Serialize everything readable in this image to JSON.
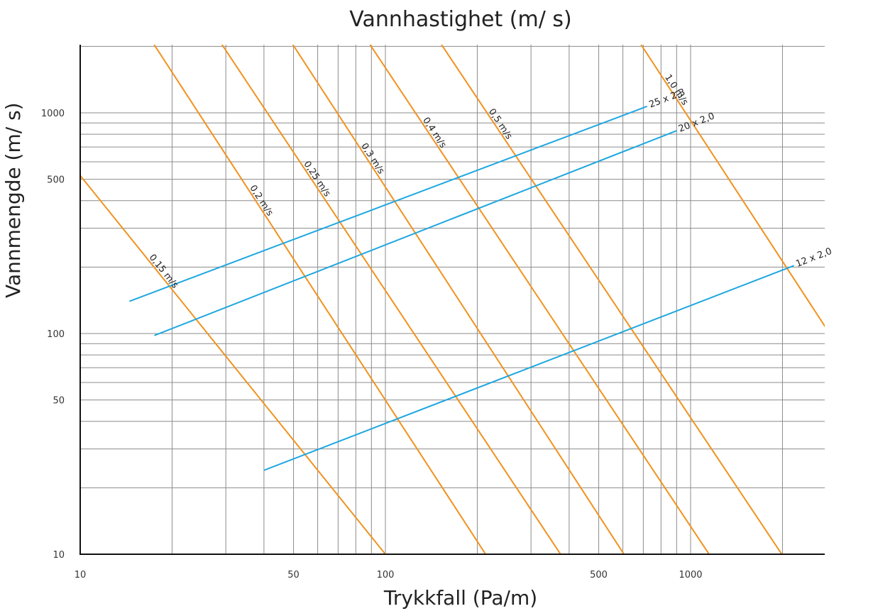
{
  "chart_data": {
    "type": "line",
    "title": "Vannhastighet (m/ s)",
    "xlabel": "Trykkfall (Pa/m)",
    "ylabel": "Vannmengde (m/ s)",
    "x_scale": "log",
    "y_scale": "log",
    "xlim": [
      10,
      3000
    ],
    "ylim": [
      10,
      2500
    ],
    "x_ticks": [
      {
        "value": 10,
        "label": "10"
      },
      {
        "value": 50,
        "label": "50"
      },
      {
        "value": 100,
        "label": "100"
      },
      {
        "value": 500,
        "label": "500"
      },
      {
        "value": 1000,
        "label": "1000"
      }
    ],
    "y_ticks": [
      {
        "value": 10,
        "label": "10"
      },
      {
        "value": 50,
        "label": "50"
      },
      {
        "value": 100,
        "label": "100"
      },
      {
        "value": 500,
        "label": "500"
      },
      {
        "value": 1000,
        "label": "1000"
      }
    ],
    "grid": true,
    "velocity_series": [
      {
        "name": "0,15 m/s",
        "color": "#f0921e",
        "x": [
          10,
          100
        ],
        "y": [
          520,
          10
        ],
        "label_pos": [
          23,
          240
        ]
      },
      {
        "name": "0,2 m/s",
        "color": "#f0921e",
        "x": [
          16.5,
          213
        ],
        "y": [
          2300,
          10
        ],
        "label_pos": [
          37,
          380
        ]
      },
      {
        "name": "0,25 m/s",
        "color": "#f0921e",
        "x": [
          27.5,
          375
        ],
        "y": [
          2300,
          10
        ],
        "label_pos": [
          62,
          520
        ]
      },
      {
        "name": "0,3 m/s",
        "color": "#f0921e",
        "x": [
          47,
          605
        ],
        "y": [
          2300,
          10
        ],
        "label_pos": [
          94,
          640
        ]
      },
      {
        "name": "0,4 m/s",
        "color": "#f0921e",
        "x": [
          84,
          1150
        ],
        "y": [
          2300,
          10
        ],
        "label_pos": [
          152,
          850
        ]
      },
      {
        "name": "0,5 m/s",
        "color": "#f0921e",
        "x": [
          144,
          1990
        ],
        "y": [
          2300,
          10
        ],
        "label_pos": [
          235,
          880
        ]
      },
      {
        "name": "1,0 m/s",
        "color": "#f0921e",
        "x": [
          650,
          3000
        ],
        "y": [
          2300,
          90
        ],
        "label_pos": [
          1000,
          1400
        ]
      }
    ],
    "pipe_series": [
      {
        "name": "25 x 2,3",
        "color": "#1ea7e0",
        "x": [
          14.5,
          720
        ],
        "y": [
          140,
          1070
        ]
      },
      {
        "name": "20 x 2,0",
        "color": "#1ea7e0",
        "x": [
          17.5,
          900
        ],
        "y": [
          98,
          830
        ]
      },
      {
        "name": "12 x 2,0",
        "color": "#1ea7e0",
        "x": [
          40,
          2180
        ],
        "y": [
          24,
          203
        ]
      }
    ]
  }
}
